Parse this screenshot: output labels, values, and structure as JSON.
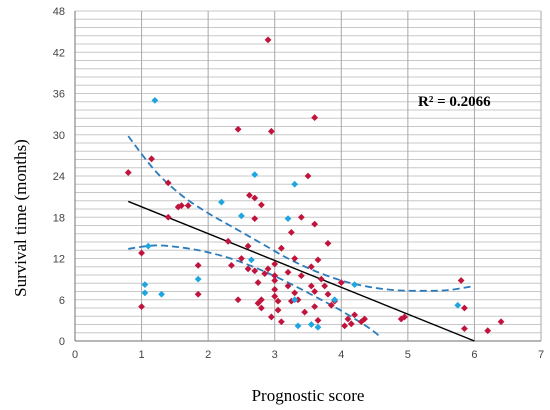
{
  "chart_data": {
    "type": "scatter",
    "title": "",
    "xlabel": "Prognostic score",
    "ylabel": "Survival time (months)",
    "xlim": [
      0,
      7
    ],
    "ylim": [
      0,
      48
    ],
    "x_ticks": [
      "0",
      "1",
      "2",
      "3",
      "4",
      "5",
      "6",
      "7"
    ],
    "y_ticks": [
      "0",
      "6",
      "12",
      "18",
      "24",
      "30",
      "36",
      "42",
      "48"
    ],
    "grid": true,
    "legend": "none",
    "annotation": "R² = 0.2066",
    "colors": {
      "red_points": "#c0143c",
      "blue_points": "#1fa6e0",
      "trendline": "#000000",
      "confidence_band": "#2b7bbd",
      "grid": "#c8c8c8"
    },
    "series": [
      {
        "marker": "diamond",
        "color": "#c0143c",
        "points": [
          [
            0.8,
            24.5
          ],
          [
            1.0,
            12.8
          ],
          [
            1.0,
            5.0
          ],
          [
            1.15,
            26.5
          ],
          [
            1.4,
            23.0
          ],
          [
            1.4,
            18.0
          ],
          [
            1.55,
            19.5
          ],
          [
            1.6,
            19.7
          ],
          [
            1.7,
            19.7
          ],
          [
            1.85,
            11.0
          ],
          [
            1.85,
            6.8
          ],
          [
            2.3,
            14.5
          ],
          [
            2.35,
            11.0
          ],
          [
            2.45,
            30.8
          ],
          [
            2.45,
            6.0
          ],
          [
            2.5,
            12.0
          ],
          [
            2.6,
            10.5
          ],
          [
            2.6,
            13.8
          ],
          [
            2.62,
            21.2
          ],
          [
            2.7,
            20.8
          ],
          [
            2.7,
            17.8
          ],
          [
            2.7,
            10.2
          ],
          [
            2.75,
            8.5
          ],
          [
            2.75,
            5.5
          ],
          [
            2.8,
            19.8
          ],
          [
            2.8,
            6.0
          ],
          [
            2.8,
            4.8
          ],
          [
            2.85,
            9.8
          ],
          [
            2.9,
            43.8
          ],
          [
            2.9,
            10.5
          ],
          [
            2.95,
            30.5
          ],
          [
            2.95,
            3.5
          ],
          [
            3.0,
            11.2
          ],
          [
            3.0,
            9.5
          ],
          [
            3.0,
            8.8
          ],
          [
            3.0,
            7.5
          ],
          [
            3.0,
            6.5
          ],
          [
            3.05,
            5.8
          ],
          [
            3.05,
            4.5
          ],
          [
            3.1,
            13.5
          ],
          [
            3.1,
            2.8
          ],
          [
            3.2,
            10.0
          ],
          [
            3.2,
            8.0
          ],
          [
            3.25,
            15.8
          ],
          [
            3.25,
            5.8
          ],
          [
            3.3,
            12.0
          ],
          [
            3.3,
            7.0
          ],
          [
            3.35,
            6.0
          ],
          [
            3.4,
            9.5
          ],
          [
            3.4,
            18.0
          ],
          [
            3.45,
            4.2
          ],
          [
            3.5,
            24.0
          ],
          [
            3.55,
            10.8
          ],
          [
            3.55,
            8.0
          ],
          [
            3.6,
            32.5
          ],
          [
            3.6,
            17.0
          ],
          [
            3.6,
            7.2
          ],
          [
            3.6,
            5.0
          ],
          [
            3.65,
            11.8
          ],
          [
            3.65,
            3.0
          ],
          [
            3.7,
            9.0
          ],
          [
            3.75,
            8.0
          ],
          [
            3.8,
            14.2
          ],
          [
            3.8,
            6.8
          ],
          [
            3.85,
            5.2
          ],
          [
            3.9,
            5.8
          ],
          [
            4.0,
            8.5
          ],
          [
            4.05,
            2.2
          ],
          [
            4.1,
            3.2
          ],
          [
            4.15,
            2.5
          ],
          [
            4.2,
            3.8
          ],
          [
            4.3,
            2.8
          ],
          [
            4.35,
            3.2
          ],
          [
            4.9,
            3.2
          ],
          [
            4.95,
            3.5
          ],
          [
            5.85,
            1.8
          ],
          [
            5.85,
            4.8
          ],
          [
            6.2,
            1.5
          ],
          [
            6.4,
            2.8
          ],
          [
            5.8,
            8.8
          ]
        ]
      },
      {
        "marker": "diamond",
        "color": "#1fa6e0",
        "points": [
          [
            1.05,
            8.2
          ],
          [
            1.05,
            7.0
          ],
          [
            1.1,
            13.8
          ],
          [
            1.2,
            35.0
          ],
          [
            1.3,
            6.8
          ],
          [
            1.85,
            9.0
          ],
          [
            2.2,
            20.2
          ],
          [
            2.5,
            18.2
          ],
          [
            2.65,
            11.8
          ],
          [
            2.7,
            24.2
          ],
          [
            3.2,
            17.8
          ],
          [
            3.3,
            22.8
          ],
          [
            3.3,
            6.0
          ],
          [
            3.35,
            2.2
          ],
          [
            3.55,
            2.4
          ],
          [
            3.65,
            2.0
          ],
          [
            3.9,
            6.0
          ],
          [
            4.2,
            8.2
          ],
          [
            5.75,
            5.2
          ]
        ]
      }
    ],
    "trendline": {
      "x": [
        0.8,
        6.0
      ],
      "y": [
        20.3,
        0.0
      ]
    },
    "confidence_upper": {
      "x": [
        0.8,
        1.2,
        1.6,
        2.0,
        2.4,
        2.8,
        3.2,
        3.6,
        4.0,
        4.4,
        4.8,
        5.2,
        5.6,
        6.0
      ],
      "y": [
        29.8,
        24.8,
        21.2,
        18.6,
        16.4,
        14.2,
        12.0,
        10.2,
        8.8,
        7.9,
        7.4,
        7.3,
        7.4,
        8.0
      ]
    },
    "confidence_lower": {
      "x": [
        0.8,
        1.2,
        1.6,
        2.0,
        2.4,
        2.8,
        3.2,
        3.6,
        4.0,
        4.4,
        4.6
      ],
      "y": [
        13.4,
        13.9,
        13.6,
        12.9,
        11.8,
        10.3,
        8.5,
        6.5,
        4.4,
        2.0,
        0.5
      ]
    }
  }
}
